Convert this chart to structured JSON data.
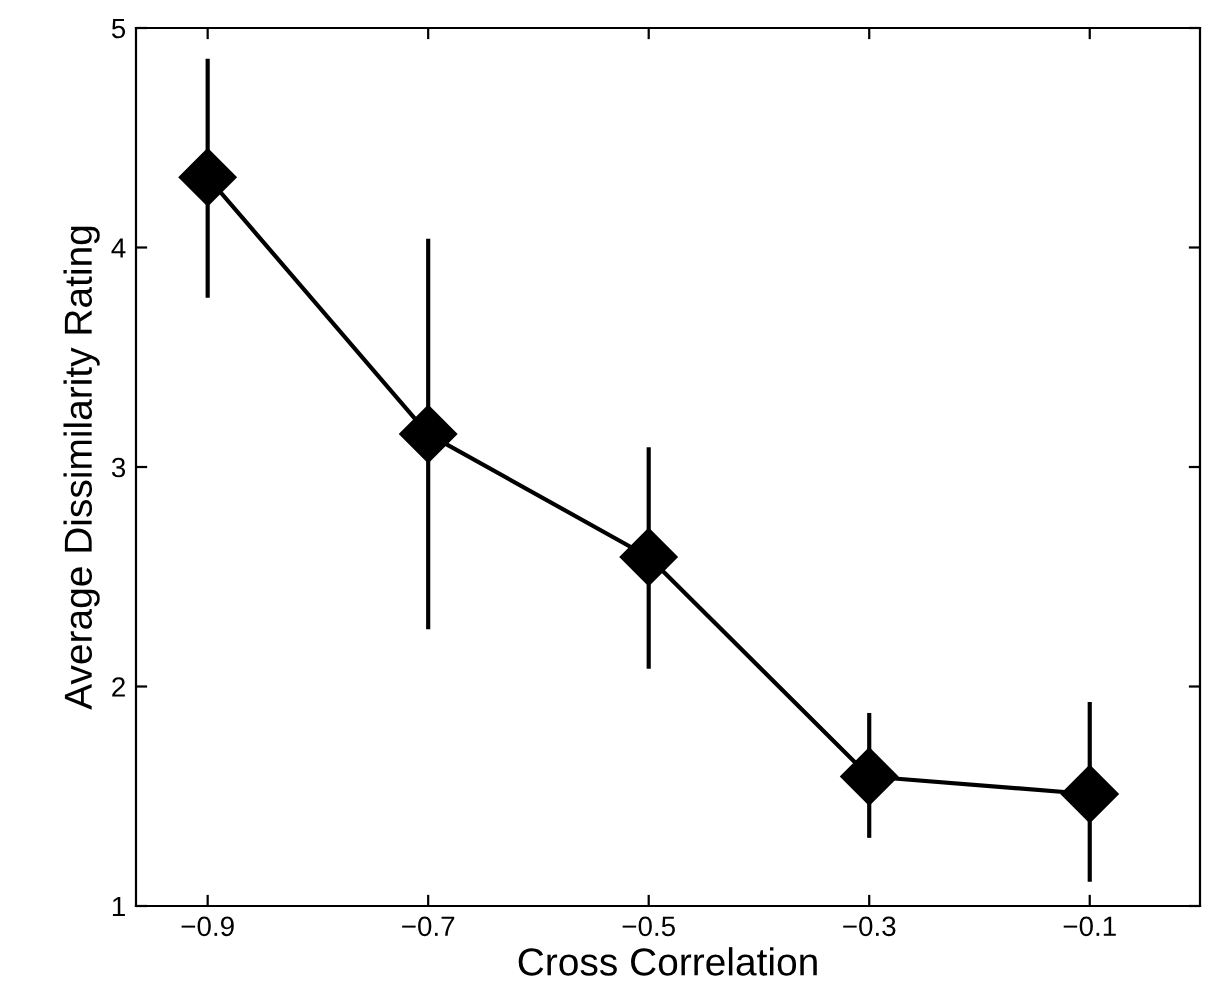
{
  "chart_data": {
    "type": "line",
    "xlabel": "Cross Correlation",
    "ylabel": "Average Dissimilarity Rating",
    "x": [
      -0.9,
      -0.7,
      -0.5,
      -0.3,
      -0.1
    ],
    "series": [
      {
        "color": "#000000",
        "values": [
          4.32,
          3.15,
          2.59,
          1.59,
          1.51
        ],
        "errors": [
          [
            3.78,
            4.85
          ],
          [
            2.27,
            4.03
          ],
          [
            2.09,
            3.08
          ],
          [
            1.32,
            1.87
          ],
          [
            1.12,
            1.92
          ]
        ]
      }
    ],
    "xlim": [
      -0.965,
      0
    ],
    "xticks": [
      {
        "value": -0.9,
        "label": "−0.9"
      },
      {
        "value": -0.7,
        "label": "−0.7"
      },
      {
        "value": -0.5,
        "label": "−0.5"
      },
      {
        "value": -0.3,
        "label": "−0.3"
      },
      {
        "value": -0.1,
        "label": "−0.1"
      }
    ],
    "ylim": [
      1,
      5
    ],
    "yticks": [
      1,
      2,
      3,
      4,
      5
    ],
    "grid": false,
    "legend": false,
    "marker": "diamond",
    "line_style": "solid"
  }
}
